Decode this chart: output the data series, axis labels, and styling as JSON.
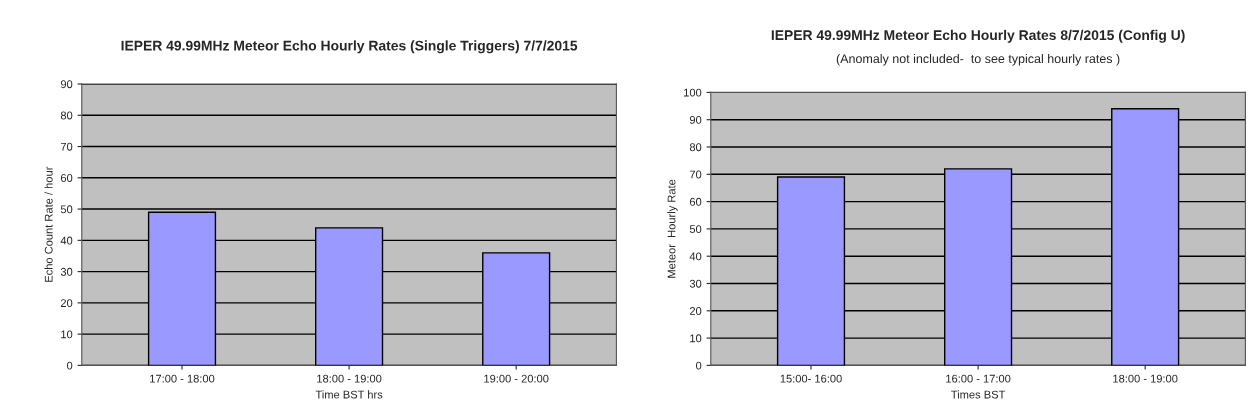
{
  "chart_data": [
    {
      "type": "bar",
      "title": "IEPER 49.99MHz Meteor Echo Hourly Rates (Single Triggers) 7/7/2015",
      "xlabel": "Time BST hrs",
      "ylabel": "Echo Count Rate / hour",
      "categories": [
        "17:00 - 18:00",
        "18:00 - 19:00",
        "19:00 - 20:00"
      ],
      "values": [
        49,
        44,
        36
      ],
      "color": "#9999ff",
      "ylim": [
        0,
        90
      ],
      "yticks": [
        0,
        10,
        20,
        30,
        40,
        50,
        60,
        70,
        80,
        90
      ],
      "grid": "y",
      "legend": false
    },
    {
      "type": "bar",
      "title": "IEPER 49.99MHz Meteor Echo Hourly Rates 8/7/2015 (Config U)",
      "subtitle": "(Anomaly not included-  to see typical hourly rates )",
      "xlabel": "Times BST",
      "ylabel": "Meteor  Hourly Rate",
      "categories": [
        "15:00- 16:00",
        "16:00 - 17:00",
        "18:00 - 19:00"
      ],
      "values": [
        69,
        72,
        94
      ],
      "color": "#9999ff",
      "ylim": [
        0,
        100
      ],
      "yticks": [
        0,
        10,
        20,
        30,
        40,
        50,
        60,
        70,
        80,
        90,
        100
      ],
      "grid": "y",
      "legend": false
    }
  ]
}
